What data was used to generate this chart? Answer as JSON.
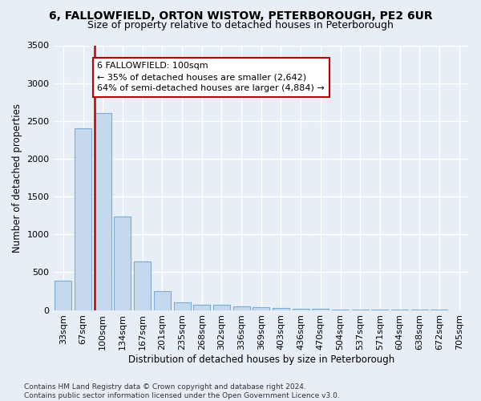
{
  "title1": "6, FALLOWFIELD, ORTON WISTOW, PETERBOROUGH, PE2 6UR",
  "title2": "Size of property relative to detached houses in Peterborough",
  "xlabel": "Distribution of detached houses by size in Peterborough",
  "ylabel": "Number of detached properties",
  "categories": [
    "33sqm",
    "67sqm",
    "100sqm",
    "134sqm",
    "167sqm",
    "201sqm",
    "235sqm",
    "268sqm",
    "302sqm",
    "336sqm",
    "369sqm",
    "403sqm",
    "436sqm",
    "470sqm",
    "504sqm",
    "537sqm",
    "571sqm",
    "604sqm",
    "638sqm",
    "672sqm",
    "705sqm"
  ],
  "values": [
    390,
    2400,
    2600,
    1240,
    640,
    255,
    100,
    65,
    65,
    50,
    35,
    30,
    20,
    15,
    10,
    5,
    3,
    2,
    1,
    1,
    0
  ],
  "bar_color": "#c5d9ee",
  "bar_edge_color": "#7aadd4",
  "highlight_index": 2,
  "highlight_line_color": "#c00000",
  "annotation_text": "6 FALLOWFIELD: 100sqm\n← 35% of detached houses are smaller (2,642)\n64% of semi-detached houses are larger (4,884) →",
  "annotation_box_color": "#ffffff",
  "annotation_box_edge": "#c00000",
  "ylim": [
    0,
    3500
  ],
  "yticks": [
    0,
    500,
    1000,
    1500,
    2000,
    2500,
    3000,
    3500
  ],
  "bg_color": "#e8eef5",
  "grid_color": "#ffffff",
  "footnote": "Contains HM Land Registry data © Crown copyright and database right 2024.\nContains public sector information licensed under the Open Government Licence v3.0.",
  "title1_fontsize": 10,
  "title2_fontsize": 9,
  "xlabel_fontsize": 8.5,
  "ylabel_fontsize": 8.5,
  "tick_fontsize": 8,
  "annot_fontsize": 8
}
